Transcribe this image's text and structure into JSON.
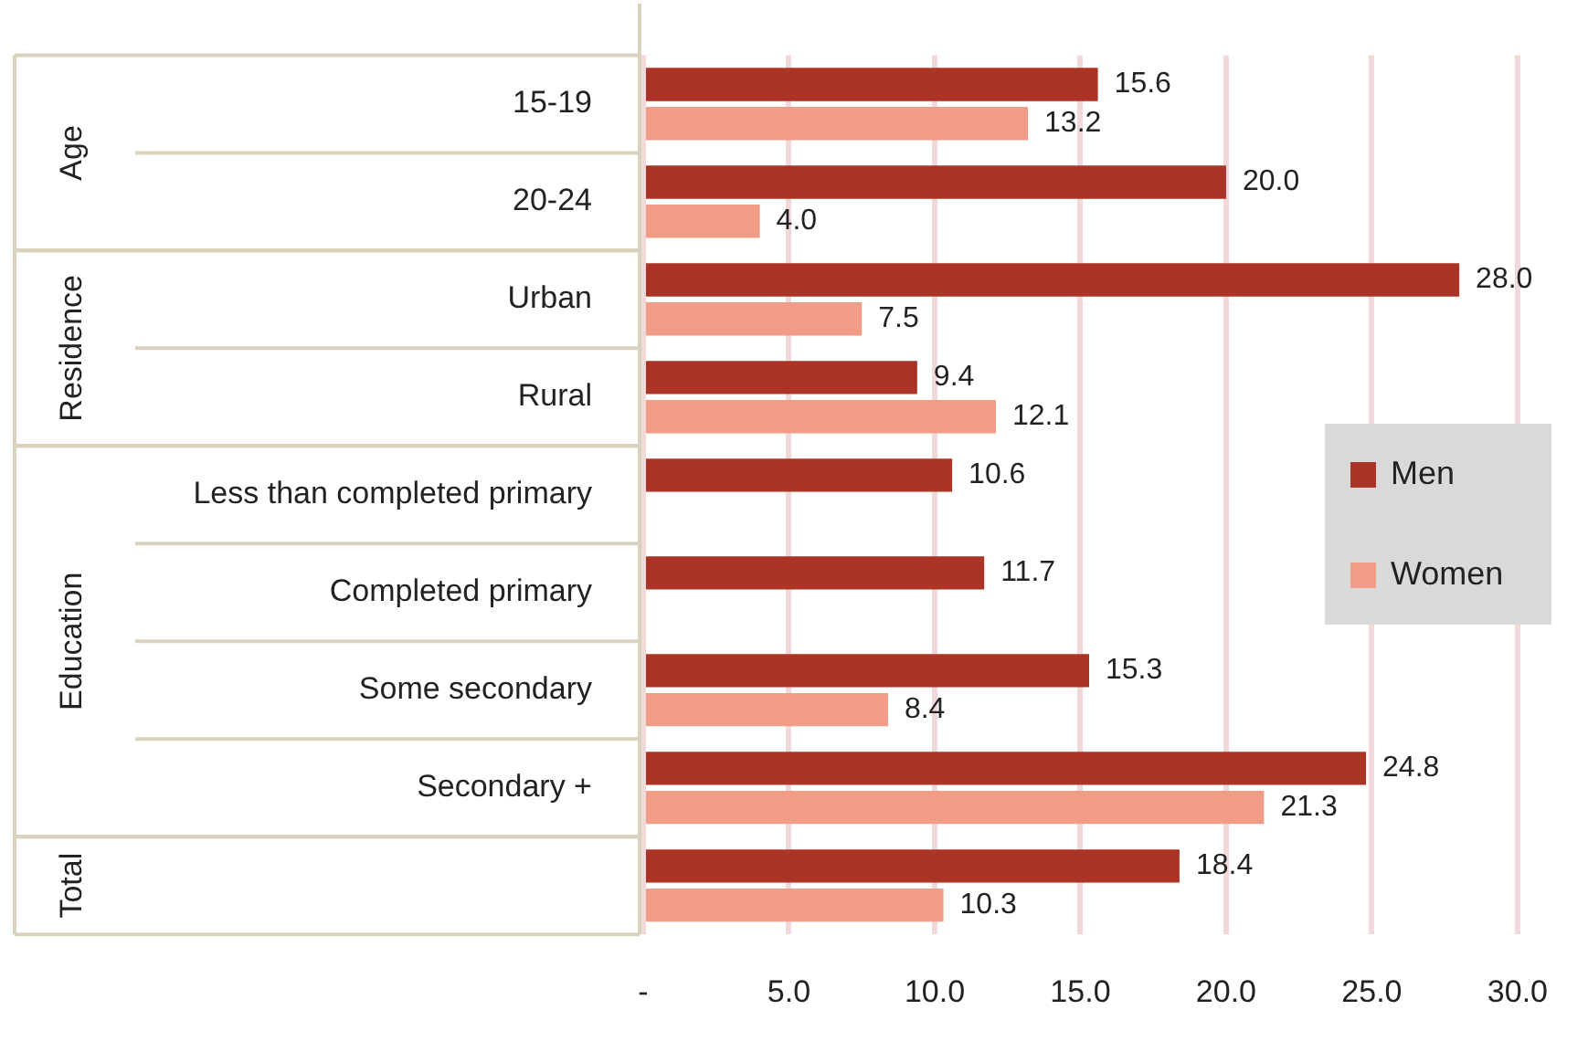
{
  "chart_data": {
    "type": "bar",
    "orientation": "horizontal",
    "categories": [
      "15-19",
      "20-24",
      "Urban",
      "Rural",
      "Less than completed primary",
      "Completed primary",
      "Some secondary",
      "Secondary +",
      null
    ],
    "series": [
      {
        "name": "Men",
        "color": "#ab3427",
        "values": [
          15.6,
          20.0,
          28.0,
          9.4,
          10.6,
          11.7,
          15.3,
          24.8,
          18.4
        ],
        "value_labels": [
          "15.6",
          "20.0",
          "28.0",
          "9.4",
          "10.6",
          "11.7",
          "15.3",
          "24.8",
          "18.4"
        ]
      },
      {
        "name": "Women",
        "color": "#f09c86",
        "values": [
          13.2,
          4.0,
          7.5,
          12.1,
          null,
          null,
          8.4,
          21.3,
          10.3
        ],
        "value_labels": [
          "13.2",
          "4.0",
          "7.5",
          "12.1",
          null,
          null,
          "8.4",
          "21.3",
          "10.3"
        ]
      }
    ],
    "xlim": [
      0,
      30
    ],
    "xticks": [
      {
        "value": 0,
        "label": "-"
      },
      {
        "value": 5,
        "label": "5.0"
      },
      {
        "value": 10,
        "label": "10.0"
      },
      {
        "value": 15,
        "label": "15.0"
      },
      {
        "value": 20,
        "label": "20.0"
      },
      {
        "value": 25,
        "label": "25.0"
      },
      {
        "value": 30,
        "label": "30.0"
      }
    ],
    "grid": "x",
    "legend": "right",
    "annotations": [
      "Age",
      "Residence",
      "Education",
      "Total"
    ]
  }
}
